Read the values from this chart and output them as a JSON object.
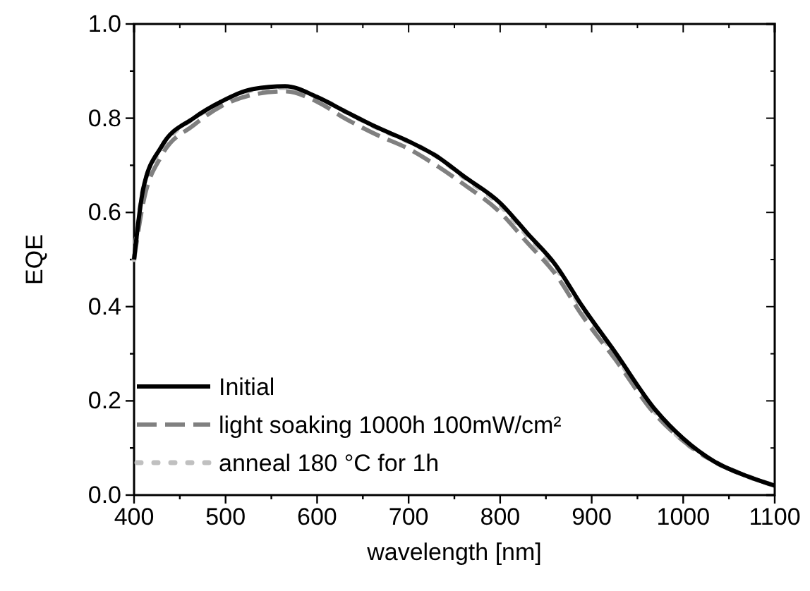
{
  "chart_data": {
    "type": "line",
    "xlabel": "wavelength [nm]",
    "ylabel": "EQE",
    "x": [
      400,
      410,
      430,
      465,
      495,
      530,
      565,
      600,
      630,
      665,
      700,
      730,
      760,
      800,
      830,
      860,
      890,
      925,
      970,
      1000,
      1035,
      1070,
      1100
    ],
    "series": [
      {
        "name": "Initial",
        "color": "#000000",
        "line_style": "solid",
        "values": [
          0.5,
          0.65,
          0.74,
          0.8,
          0.835,
          0.862,
          0.868,
          0.845,
          0.815,
          0.781,
          0.751,
          0.72,
          0.677,
          0.62,
          0.555,
          0.49,
          0.4,
          0.305,
          0.18,
          0.12,
          0.07,
          0.04,
          0.02
        ]
      },
      {
        "name": "light soaking 1000h 100mW/cm²",
        "color": "#808080",
        "line_style": "dashed",
        "values": [
          0.5,
          0.62,
          0.72,
          0.785,
          0.825,
          0.85,
          0.857,
          0.835,
          0.8,
          0.765,
          0.735,
          0.7,
          0.66,
          0.6,
          0.535,
          0.47,
          0.38,
          0.29,
          0.17,
          0.115,
          0.07,
          0.04,
          0.02
        ]
      },
      {
        "name": "anneal 180 °C for 1h",
        "color": "#c0c0c0",
        "line_style": "dotted",
        "values": [
          0.5,
          0.65,
          0.735,
          0.8,
          0.83,
          0.86,
          0.865,
          0.845,
          0.815,
          0.78,
          0.75,
          0.72,
          0.675,
          0.615,
          0.55,
          0.485,
          0.395,
          0.3,
          0.175,
          0.115,
          0.07,
          0.04,
          0.02
        ]
      }
    ],
    "xlim": [
      400,
      1100
    ],
    "xticks": [
      400,
      {
        "value": 450,
        "label": null
      },
      500,
      {
        "value": 550,
        "label": null
      },
      600,
      {
        "value": 650,
        "label": null
      },
      700,
      {
        "value": 750,
        "label": null
      },
      800,
      {
        "value": 850,
        "label": null
      },
      900,
      {
        "value": 950,
        "label": null
      },
      1000,
      {
        "value": 1050,
        "label": null
      },
      1100
    ],
    "ylim": [
      0,
      1
    ],
    "yticks": [
      {
        "value": 0,
        "label": "0.0"
      },
      {
        "value": 0.1,
        "label": null
      },
      {
        "value": 0.2,
        "label": "0.2"
      },
      {
        "value": 0.3,
        "label": null
      },
      {
        "value": 0.4,
        "label": "0.4"
      },
      {
        "value": 0.5,
        "label": null
      },
      {
        "value": 0.6,
        "label": "0.6"
      },
      {
        "value": 0.7,
        "label": null
      },
      {
        "value": 0.8,
        "label": "0.8"
      },
      {
        "value": 0.9,
        "label": null
      },
      {
        "value": 1,
        "label": "1.0"
      }
    ],
    "grid": false,
    "legend": "bottom left",
    "marker": "none"
  }
}
